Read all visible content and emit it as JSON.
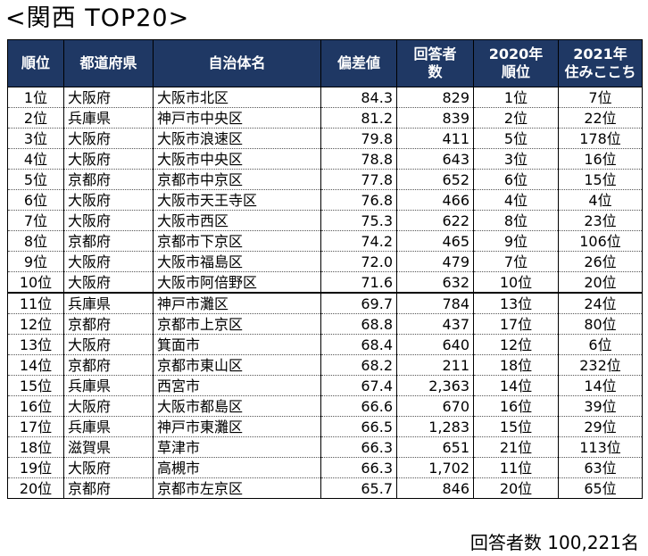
{
  "title": "<関西  TOP20>",
  "headers": {
    "rank": "順位",
    "prefecture": "都道府県",
    "municipality": "自治体名",
    "score": "偏差値",
    "respondents_line1": "回答者",
    "respondents_line2": "数",
    "rank2020_line1": "2020年",
    "rank2020_line2": "順位",
    "rank2021_line1": "2021年",
    "rank2021_line2": "住みここち"
  },
  "rows": [
    {
      "rank": "1位",
      "prefecture": "大阪府",
      "municipality": "大阪市北区",
      "score": "84.3",
      "respondents": "829",
      "rank2020": "1位",
      "rank2021": "7位"
    },
    {
      "rank": "2位",
      "prefecture": "兵庫県",
      "municipality": "神戸市中央区",
      "score": "81.2",
      "respondents": "839",
      "rank2020": "2位",
      "rank2021": "22位"
    },
    {
      "rank": "3位",
      "prefecture": "大阪府",
      "municipality": "大阪市浪速区",
      "score": "79.8",
      "respondents": "411",
      "rank2020": "5位",
      "rank2021": "178位"
    },
    {
      "rank": "4位",
      "prefecture": "大阪府",
      "municipality": "大阪市中央区",
      "score": "78.8",
      "respondents": "643",
      "rank2020": "3位",
      "rank2021": "16位"
    },
    {
      "rank": "5位",
      "prefecture": "京都府",
      "municipality": "京都市中京区",
      "score": "77.8",
      "respondents": "652",
      "rank2020": "6位",
      "rank2021": "15位"
    },
    {
      "rank": "6位",
      "prefecture": "大阪府",
      "municipality": "大阪市天王寺区",
      "score": "76.8",
      "respondents": "466",
      "rank2020": "4位",
      "rank2021": "4位"
    },
    {
      "rank": "7位",
      "prefecture": "大阪府",
      "municipality": "大阪市西区",
      "score": "75.3",
      "respondents": "622",
      "rank2020": "8位",
      "rank2021": "23位"
    },
    {
      "rank": "8位",
      "prefecture": "京都府",
      "municipality": "京都市下京区",
      "score": "74.2",
      "respondents": "465",
      "rank2020": "9位",
      "rank2021": "106位"
    },
    {
      "rank": "9位",
      "prefecture": "大阪府",
      "municipality": "大阪市福島区",
      "score": "72.0",
      "respondents": "479",
      "rank2020": "7位",
      "rank2021": "26位"
    },
    {
      "rank": "10位",
      "prefecture": "大阪府",
      "municipality": "大阪市阿倍野区",
      "score": "71.6",
      "respondents": "632",
      "rank2020": "10位",
      "rank2021": "20位"
    },
    {
      "rank": "11位",
      "prefecture": "兵庫県",
      "municipality": "神戸市灘区",
      "score": "69.7",
      "respondents": "784",
      "rank2020": "13位",
      "rank2021": "24位"
    },
    {
      "rank": "12位",
      "prefecture": "京都府",
      "municipality": "京都市上京区",
      "score": "68.8",
      "respondents": "437",
      "rank2020": "17位",
      "rank2021": "80位"
    },
    {
      "rank": "13位",
      "prefecture": "大阪府",
      "municipality": "箕面市",
      "score": "68.4",
      "respondents": "640",
      "rank2020": "12位",
      "rank2021": "6位"
    },
    {
      "rank": "14位",
      "prefecture": "京都府",
      "municipality": "京都市東山区",
      "score": "68.2",
      "respondents": "211",
      "rank2020": "18位",
      "rank2021": "232位"
    },
    {
      "rank": "15位",
      "prefecture": "兵庫県",
      "municipality": "西宮市",
      "score": "67.4",
      "respondents": "2,363",
      "rank2020": "14位",
      "rank2021": "14位"
    },
    {
      "rank": "16位",
      "prefecture": "大阪府",
      "municipality": "大阪市都島区",
      "score": "66.6",
      "respondents": "670",
      "rank2020": "16位",
      "rank2021": "39位"
    },
    {
      "rank": "17位",
      "prefecture": "兵庫県",
      "municipality": "神戸市東灘区",
      "score": "66.5",
      "respondents": "1,283",
      "rank2020": "15位",
      "rank2021": "29位"
    },
    {
      "rank": "18位",
      "prefecture": "滋賀県",
      "municipality": "草津市",
      "score": "66.3",
      "respondents": "651",
      "rank2020": "21位",
      "rank2021": "113位"
    },
    {
      "rank": "19位",
      "prefecture": "大阪府",
      "municipality": "高槻市",
      "score": "66.3",
      "respondents": "1,702",
      "rank2020": "11位",
      "rank2021": "63位"
    },
    {
      "rank": "20位",
      "prefecture": "京都府",
      "municipality": "京都市左京区",
      "score": "65.7",
      "respondents": "846",
      "rank2020": "20位",
      "rank2021": "65位"
    }
  ],
  "footer": {
    "label": "回答者数",
    "value": "100,221名"
  },
  "colors": {
    "header_bg": "#1f3864",
    "header_text": "#ffffff"
  }
}
